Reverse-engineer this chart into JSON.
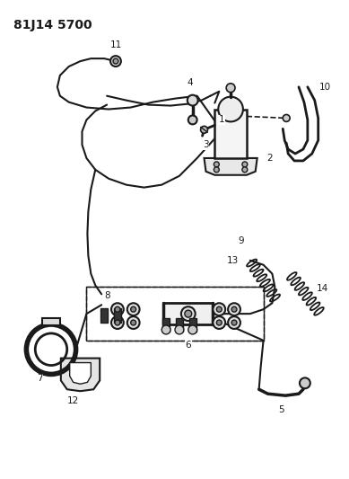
{
  "title_code": "81J14 5700",
  "background": "#ffffff",
  "line_color": "#1a1a1a",
  "title_fontsize": 10,
  "label_fontsize": 7.5,
  "figsize": [
    3.89,
    5.33
  ],
  "dpi": 100
}
